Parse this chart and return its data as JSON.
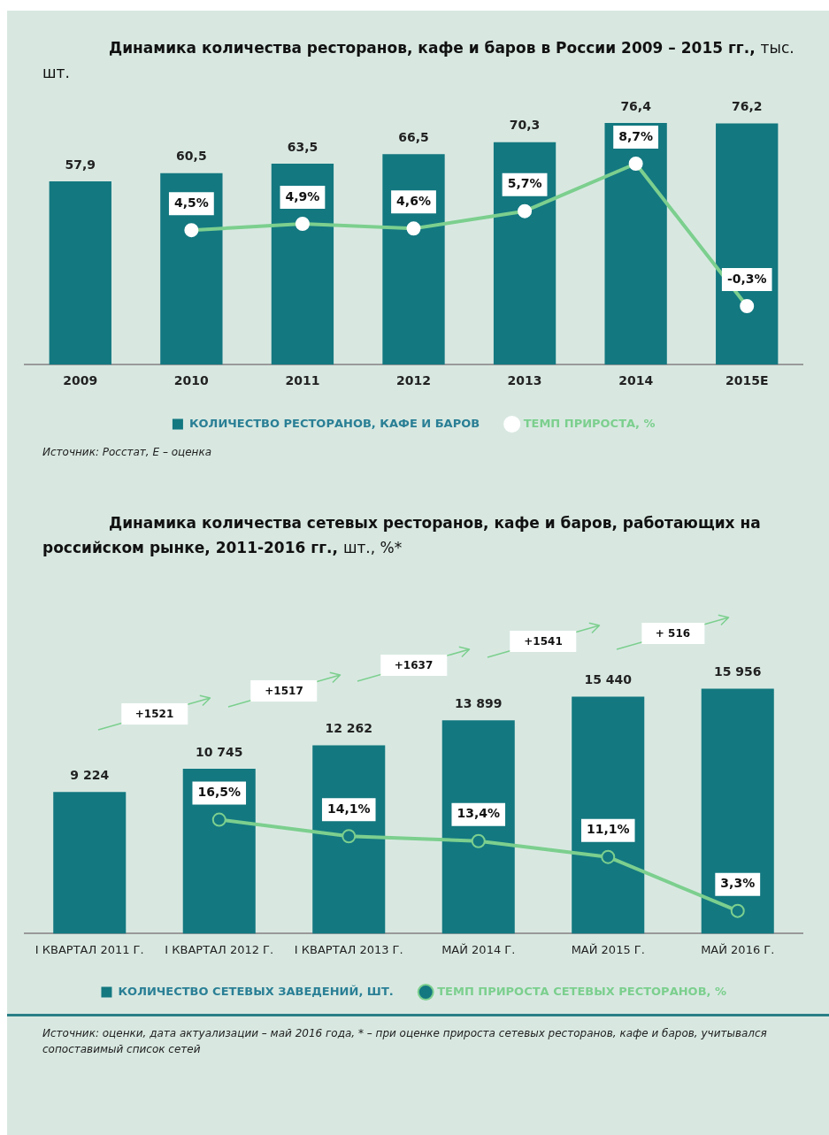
{
  "chart_data": [
    {
      "type": "bar",
      "title": "Динамика количества ресторанов, кафе и баров в России 2009 – 2015 гг.,",
      "subtitle": "тыс. шт.",
      "categories": [
        "2009",
        "2010",
        "2011",
        "2012",
        "2013",
        "2014",
        "2015E"
      ],
      "series": [
        {
          "name": "КОЛИЧЕСТВО РЕСТОРАНОВ, КАФЕ И БАРОВ",
          "color": "#137880",
          "values": [
            57.9,
            60.5,
            63.5,
            66.5,
            70.3,
            76.4,
            76.2
          ],
          "value_labels": [
            "57,9",
            "60,5",
            "63,5",
            "66,5",
            "70,3",
            "76,4",
            "76,2"
          ]
        },
        {
          "name": "ТЕМП ПРИРОСТА, %",
          "type": "line",
          "axis": "y2",
          "color": "#7ccf8e",
          "values": [
            null,
            4.5,
            4.9,
            4.6,
            5.7,
            8.7,
            -0.3
          ],
          "value_labels": [
            null,
            "4,5%",
            "4,9%",
            "4,6%",
            "5,7%",
            "8,7%",
            "-0,3%"
          ]
        }
      ],
      "tick_labels": "x",
      "legend": "bottom",
      "grid": false,
      "marker": "circle",
      "line_style": "solid",
      "annotations": [
        "Источник: Росстат, E – оценка"
      ]
    },
    {
      "type": "bar",
      "title": "Динамика количества сетевых ресторанов, кафе и баров, работающих на российском рынке, 2011-2016 гг.,",
      "subtitle": "шт., %*",
      "categories": [
        "I КВАРТАЛ 2011 Г.",
        "I КВАРТАЛ 2012 Г.",
        "I КВАРТАЛ 2013 Г.",
        "МАЙ 2014 Г.",
        "МАЙ 2015 Г.",
        "МАЙ 2016 Г."
      ],
      "series": [
        {
          "name": "КОЛИЧЕСТВО СЕТЕВЫХ ЗАВЕДЕНИЙ, ШТ.",
          "color": "#137880",
          "values": [
            9224,
            10745,
            12262,
            13899,
            15440,
            15956
          ],
          "value_labels": [
            "9 224",
            "10 745",
            "12 262",
            "13 899",
            "15 440",
            "15 956"
          ]
        },
        {
          "name": "ТЕМП ПРИРОСТА СЕТЕВЫХ РЕСТОРАНОВ, %",
          "type": "line",
          "axis": "y2",
          "color": "#7ccf8e",
          "values": [
            null,
            16.5,
            14.1,
            13.4,
            11.1,
            3.3
          ],
          "value_labels": [
            null,
            "16,5%",
            "14,1%",
            "13,4%",
            "11,1%",
            "3,3%"
          ]
        }
      ],
      "tick_labels": "x",
      "legend": "bottom",
      "grid": false,
      "marker": "circle",
      "line_style": "solid",
      "annotations": [
        "+1521",
        "+1517",
        "+1637",
        "+1541",
        "+ 516",
        "Источник: оценки, дата актуализации – май 2016 года, * – при оценке прироста сетевых ресторанов, кафе и баров, учитывался сопоставимый список сетей"
      ]
    }
  ]
}
